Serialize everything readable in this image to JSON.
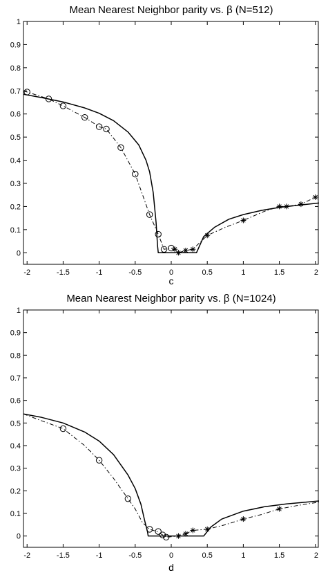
{
  "chart_data": [
    {
      "type": "line",
      "title": "Mean Nearest Neighbor parity vs. β (N=512)",
      "xlabel": "c",
      "ylabel": "",
      "xlim": [
        -2.05,
        2.05
      ],
      "ylim": [
        -0.05,
        1.0
      ],
      "x_ticks": [
        -2,
        -1.5,
        -1,
        -0.5,
        0,
        0.5,
        1,
        1.5,
        2
      ],
      "x_tick_labels": [
        "-2",
        "-1.5",
        "-1",
        "-0.5",
        "0",
        "0.5",
        "1",
        "1.5",
        "2"
      ],
      "y_ticks": [
        0,
        0.1,
        0.2,
        0.3,
        0.4,
        0.5,
        0.6,
        0.7,
        0.8,
        0.9,
        1
      ],
      "y_tick_labels": [
        "0",
        "0.1",
        "0.2",
        "0.3",
        "0.4",
        "0.5",
        "0.6",
        "0.7",
        "0.8",
        "0.9",
        "1"
      ],
      "grid": false,
      "series": [
        {
          "style": "solid",
          "color": "#000000",
          "points": [
            [
              -2.05,
              0.685
            ],
            [
              -1.8,
              0.671
            ],
            [
              -1.5,
              0.652
            ],
            [
              -1.2,
              0.626
            ],
            [
              -1.0,
              0.603
            ],
            [
              -0.8,
              0.571
            ],
            [
              -0.6,
              0.522
            ],
            [
              -0.45,
              0.466
            ],
            [
              -0.35,
              0.4
            ],
            [
              -0.3,
              0.35
            ],
            [
              -0.25,
              0.26
            ],
            [
              -0.21,
              0.13
            ],
            [
              -0.19,
              0.03
            ],
            [
              -0.18,
              0.0
            ],
            [
              0.35,
              0.0
            ],
            [
              0.45,
              0.07
            ],
            [
              0.6,
              0.11
            ],
            [
              0.8,
              0.145
            ],
            [
              1.0,
              0.165
            ],
            [
              1.25,
              0.183
            ],
            [
              1.5,
              0.196
            ],
            [
              1.75,
              0.205
            ],
            [
              2.05,
              0.215
            ]
          ]
        },
        {
          "style": "dashdot",
          "color": "#000000",
          "points": [
            [
              -2.05,
              0.7
            ],
            [
              -1.7,
              0.665
            ],
            [
              -1.5,
              0.635
            ],
            [
              -1.2,
              0.585
            ],
            [
              -1.0,
              0.545
            ],
            [
              -0.9,
              0.535
            ],
            [
              -0.7,
              0.455
            ],
            [
              -0.5,
              0.34
            ],
            [
              -0.3,
              0.165
            ],
            [
              -0.18,
              0.08
            ],
            [
              -0.1,
              0.015
            ],
            [
              0.0,
              0.02
            ],
            [
              0.1,
              0.0
            ],
            [
              0.2,
              0.01
            ],
            [
              0.3,
              0.015
            ],
            [
              0.5,
              0.075
            ],
            [
              0.75,
              0.11
            ],
            [
              1.0,
              0.14
            ],
            [
              1.3,
              0.18
            ],
            [
              1.5,
              0.2
            ],
            [
              1.6,
              0.2
            ],
            [
              1.8,
              0.21
            ],
            [
              2.0,
              0.24
            ]
          ]
        },
        {
          "marker": "circle",
          "color": "#000000",
          "points": [
            [
              -2.0,
              0.695
            ],
            [
              -1.7,
              0.665
            ],
            [
              -1.5,
              0.635
            ],
            [
              -1.2,
              0.585
            ],
            [
              -1.0,
              0.545
            ],
            [
              -0.9,
              0.535
            ],
            [
              -0.7,
              0.455
            ],
            [
              -0.5,
              0.34
            ],
            [
              -0.3,
              0.165
            ],
            [
              -0.18,
              0.08
            ],
            [
              -0.1,
              0.015
            ],
            [
              0.0,
              0.02
            ]
          ]
        },
        {
          "marker": "star",
          "color": "#000000",
          "points": [
            [
              0.05,
              0.015
            ],
            [
              0.1,
              0.0
            ],
            [
              0.2,
              0.01
            ],
            [
              0.3,
              0.015
            ],
            [
              0.5,
              0.075
            ],
            [
              1.0,
              0.14
            ],
            [
              1.5,
              0.2
            ],
            [
              1.6,
              0.2
            ],
            [
              1.8,
              0.21
            ],
            [
              2.0,
              0.24
            ]
          ]
        }
      ]
    },
    {
      "type": "line",
      "title": "Mean Nearest Neighbor parity vs. β (N=1024)",
      "xlabel": "d",
      "ylabel": "",
      "xlim": [
        -2.05,
        2.05
      ],
      "ylim": [
        -0.05,
        1.0
      ],
      "x_ticks": [
        -2,
        -1.5,
        -1,
        -0.5,
        0,
        0.5,
        1,
        1.5,
        2
      ],
      "x_tick_labels": [
        "-2",
        "-1.5",
        "-1",
        "-0.5",
        "0",
        "0.5",
        "1",
        "1.5",
        "2"
      ],
      "y_ticks": [
        0,
        0.1,
        0.2,
        0.3,
        0.4,
        0.5,
        0.6,
        0.7,
        0.8,
        0.9,
        1
      ],
      "y_tick_labels": [
        "0",
        "0.1",
        "0.2",
        "0.3",
        "0.4",
        "0.5",
        "0.6",
        "0.7",
        "0.8",
        "0.9",
        "1"
      ],
      "grid": false,
      "series": [
        {
          "style": "solid",
          "color": "#000000",
          "points": [
            [
              -2.05,
              0.54
            ],
            [
              -1.8,
              0.525
            ],
            [
              -1.5,
              0.5
            ],
            [
              -1.2,
              0.46
            ],
            [
              -1.0,
              0.42
            ],
            [
              -0.8,
              0.36
            ],
            [
              -0.6,
              0.27
            ],
            [
              -0.5,
              0.21
            ],
            [
              -0.42,
              0.14
            ],
            [
              -0.37,
              0.07
            ],
            [
              -0.33,
              0.02
            ],
            [
              -0.32,
              0.0
            ],
            [
              0.45,
              0.0
            ],
            [
              0.55,
              0.04
            ],
            [
              0.7,
              0.075
            ],
            [
              1.0,
              0.11
            ],
            [
              1.3,
              0.13
            ],
            [
              1.6,
              0.142
            ],
            [
              2.05,
              0.155
            ]
          ]
        },
        {
          "style": "dashdot",
          "color": "#000000",
          "points": [
            [
              -2.05,
              0.54
            ],
            [
              -1.8,
              0.51
            ],
            [
              -1.5,
              0.475
            ],
            [
              -1.2,
              0.4
            ],
            [
              -1.0,
              0.335
            ],
            [
              -0.8,
              0.255
            ],
            [
              -0.6,
              0.165
            ],
            [
              -0.5,
              0.12
            ],
            [
              -0.4,
              0.06
            ],
            [
              -0.3,
              0.03
            ],
            [
              -0.2,
              0.02
            ],
            [
              -0.12,
              0.005
            ],
            [
              -0.07,
              -0.005
            ],
            [
              0.1,
              0.0
            ],
            [
              0.2,
              0.01
            ],
            [
              0.3,
              0.025
            ],
            [
              0.5,
              0.03
            ],
            [
              0.75,
              0.05
            ],
            [
              1.0,
              0.075
            ],
            [
              1.25,
              0.095
            ],
            [
              1.5,
              0.12
            ],
            [
              1.75,
              0.135
            ],
            [
              2.05,
              0.15
            ]
          ]
        },
        {
          "marker": "circle",
          "color": "#000000",
          "points": [
            [
              -1.5,
              0.475
            ],
            [
              -1.0,
              0.335
            ],
            [
              -0.6,
              0.165
            ],
            [
              -0.3,
              0.03
            ],
            [
              -0.18,
              0.02
            ],
            [
              -0.12,
              0.005
            ],
            [
              -0.07,
              -0.005
            ]
          ]
        },
        {
          "marker": "star",
          "color": "#000000",
          "points": [
            [
              0.1,
              0.0
            ],
            [
              0.2,
              0.01
            ],
            [
              0.3,
              0.025
            ],
            [
              0.5,
              0.03
            ],
            [
              1.0,
              0.075
            ],
            [
              1.5,
              0.12
            ]
          ]
        }
      ]
    }
  ]
}
